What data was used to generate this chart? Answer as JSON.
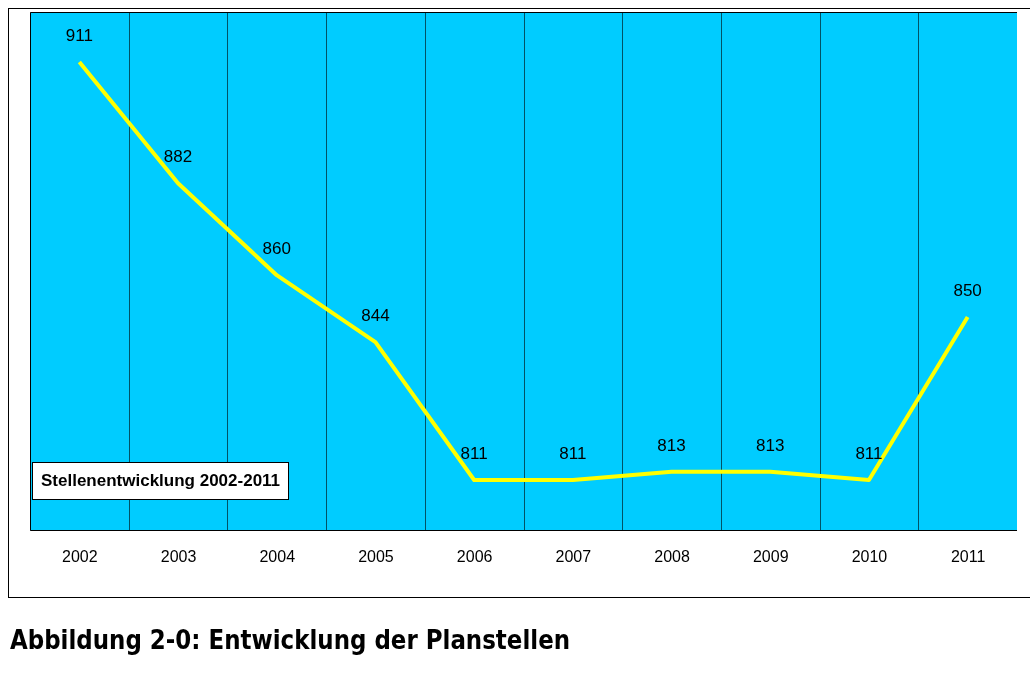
{
  "chart_data": {
    "type": "line",
    "title": "Stellenentwicklung 2002-2011",
    "annotations": [
      "Abbildung 2-0: Entwicklung der Planstellen"
    ],
    "categories": [
      "2002",
      "2003",
      "2004",
      "2005",
      "2006",
      "2007",
      "2008",
      "2009",
      "2010",
      "2011"
    ],
    "series": [
      {
        "color": "#ffff00",
        "values": [
          911,
          882,
          860,
          844,
          811,
          811,
          813,
          813,
          811,
          850
        ]
      }
    ],
    "data_labels": true,
    "grid": "x",
    "marker": "none",
    "line_style": "solid"
  }
}
